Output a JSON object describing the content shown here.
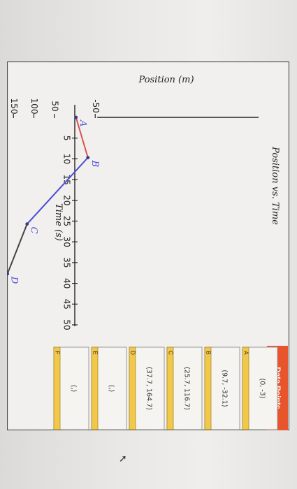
{
  "chart_data": {
    "type": "line",
    "title": "Position vs. Time",
    "xlabel": "Time (s)",
    "ylabel": "Position (m)",
    "xlim": [
      0,
      50
    ],
    "ylim": [
      -50,
      150
    ],
    "x_ticks": [
      "5",
      "10",
      "15",
      "20",
      "25",
      "30",
      "35",
      "40",
      "45",
      "50"
    ],
    "y_ticks": [
      "150",
      "100",
      "50",
      "-50"
    ],
    "points": [
      {
        "label": "A",
        "x": 0,
        "y": -3
      },
      {
        "label": "B",
        "x": 9.7,
        "y": -32.1
      },
      {
        "label": "C",
        "x": 25.7,
        "y": 116.7
      },
      {
        "label": "D",
        "x": 37.7,
        "y": 164.7
      }
    ],
    "segments": [
      {
        "from": "A",
        "to": "B",
        "color": "#d9534f"
      },
      {
        "from": "B",
        "to": "C",
        "color": "#4b4bd6"
      },
      {
        "from": "C",
        "to": "D",
        "color": "#444444"
      }
    ]
  },
  "data_table": {
    "title": "Data Points",
    "rows": [
      {
        "letter": "A",
        "value": "(0, -3)",
        "color": "#f2c84a"
      },
      {
        "letter": "B",
        "value": "(9.7, -32.1)",
        "color": "#f2c84a"
      },
      {
        "letter": "C",
        "value": "(25.7, 116.7)",
        "color": "#f2c84a"
      },
      {
        "letter": "D",
        "value": "(37.7, 164.7)",
        "color": "#f2c84a"
      },
      {
        "letter": "E",
        "value": "(,)",
        "color": "#f2c84a"
      },
      {
        "letter": "F",
        "value": "(,)",
        "color": "#f2c84a"
      }
    ]
  }
}
